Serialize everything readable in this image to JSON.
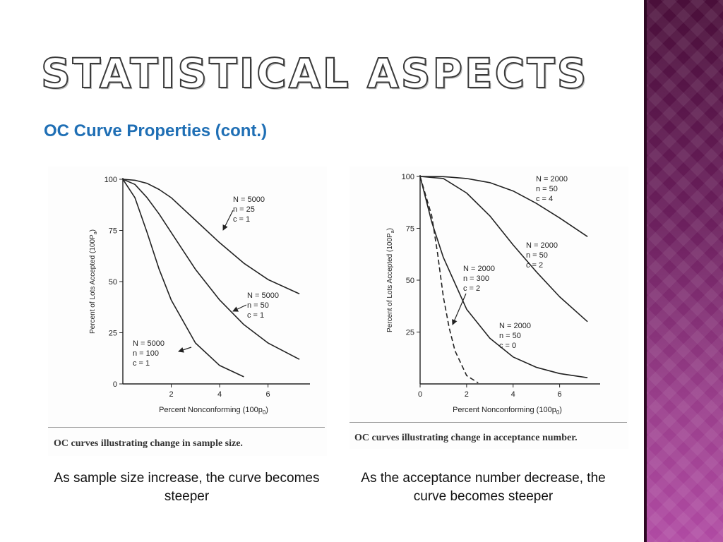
{
  "slide": {
    "title": "STATISTICAL ASPECTS",
    "subtitle": "OC Curve Properties (cont.)",
    "caption_left": "As sample size increase, the curve becomes steeper",
    "caption_right": "As the acceptance number decrease, the curve becomes steeper",
    "colors": {
      "subtitle": "#1f6fb5",
      "band": "#7a2a6c"
    }
  },
  "chart_data": [
    {
      "type": "line",
      "ylabel": "Percent of Lots Accepted (100P",
      "ylabel_sub": "a",
      "ylabel_end": ")",
      "xlabel": "Percent Nonconforming (100p",
      "xlabel_sub": "0",
      "xlabel_end": ")",
      "xlim": [
        0,
        7.5
      ],
      "ylim": [
        0,
        100
      ],
      "xticks": [
        "2",
        "4",
        "6"
      ],
      "yticks": [
        "0",
        "25",
        "50",
        "75",
        "100"
      ],
      "caption": "OC curves illustrating change in sample size.",
      "series": [
        {
          "label_lines": [
            "N = 5000",
            "n = 25",
            "c = 1"
          ],
          "style": "solid",
          "points": [
            [
              0,
              100
            ],
            [
              0.5,
              99.5
            ],
            [
              1,
              98
            ],
            [
              1.5,
              95
            ],
            [
              2,
              91
            ],
            [
              3,
              80
            ],
            [
              4,
              69
            ],
            [
              5,
              59
            ],
            [
              6,
              51
            ],
            [
              7.3,
              44
            ]
          ]
        },
        {
          "label_lines": [
            "N = 5000",
            "n = 50",
            "c = 1"
          ],
          "style": "solid",
          "points": [
            [
              0,
              100
            ],
            [
              0.5,
              97.5
            ],
            [
              1,
              91
            ],
            [
              1.5,
              83
            ],
            [
              2,
              74
            ],
            [
              3,
              56
            ],
            [
              4,
              41
            ],
            [
              5,
              29
            ],
            [
              6,
              20
            ],
            [
              7.3,
              12
            ]
          ]
        },
        {
          "label_lines": [
            "N = 5000",
            "n = 100",
            "c = 1"
          ],
          "style": "solid",
          "points": [
            [
              0,
              100
            ],
            [
              0.5,
              91
            ],
            [
              1,
              74
            ],
            [
              1.5,
              56
            ],
            [
              2,
              41
            ],
            [
              3,
              20
            ],
            [
              4,
              9
            ],
            [
              5,
              3.5
            ]
          ]
        }
      ]
    },
    {
      "type": "line",
      "ylabel": "Percent of Lots Accepted (100P",
      "ylabel_sub": "a",
      "ylabel_end": ")",
      "xlabel": "Percent Nonconforming (100p",
      "xlabel_sub": "0",
      "xlabel_end": ")",
      "xlim": [
        0,
        7.5
      ],
      "ylim": [
        0,
        100
      ],
      "xticks": [
        "0",
        "2",
        "4",
        "6"
      ],
      "yticks": [
        "25",
        "50",
        "75",
        "100"
      ],
      "caption": "OC curves illustrating change in acceptance number.",
      "series": [
        {
          "label_lines": [
            "N = 2000",
            "n = 50",
            "c = 4"
          ],
          "style": "solid",
          "points": [
            [
              0,
              100
            ],
            [
              1,
              99.9
            ],
            [
              2,
              99
            ],
            [
              3,
              97
            ],
            [
              4,
              93
            ],
            [
              5,
              87
            ],
            [
              6,
              80
            ],
            [
              7.2,
              71
            ]
          ]
        },
        {
          "label_lines": [
            "N = 2000",
            "n = 50",
            "c = 2"
          ],
          "style": "solid",
          "points": [
            [
              0,
              100
            ],
            [
              1,
              99
            ],
            [
              2,
              92
            ],
            [
              3,
              81
            ],
            [
              4,
              67
            ],
            [
              5,
              54
            ],
            [
              6,
              42
            ],
            [
              7.2,
              30
            ]
          ]
        },
        {
          "label_lines": [
            "N = 2000",
            "n = 300",
            "c = 2"
          ],
          "style": "dashed",
          "points": [
            [
              0,
              100
            ],
            [
              0.5,
              81
            ],
            [
              0.75,
              63
            ],
            [
              1,
              42
            ],
            [
              1.25,
              27
            ],
            [
              1.5,
              16
            ],
            [
              2,
              4
            ],
            [
              2.5,
              0.5
            ]
          ]
        },
        {
          "label_lines": [
            "N = 2000",
            "n = 50",
            "c = 0"
          ],
          "style": "solid",
          "points": [
            [
              0,
              100
            ],
            [
              0.5,
              78
            ],
            [
              1,
              61
            ],
            [
              2,
              36
            ],
            [
              3,
              22
            ],
            [
              4,
              13
            ],
            [
              5,
              8
            ],
            [
              6,
              5
            ],
            [
              7.2,
              3
            ]
          ]
        }
      ]
    }
  ]
}
